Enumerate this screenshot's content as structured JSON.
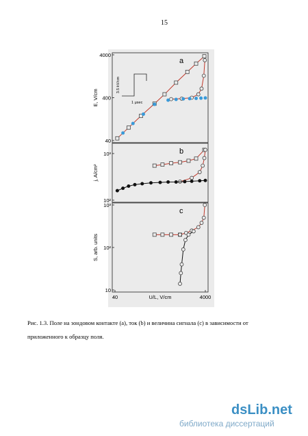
{
  "page_number": "15",
  "figure": {
    "chart_data": [
      {
        "type": "scatter",
        "panel": "a",
        "ylabel": "E, V/cm",
        "xlog": true,
        "ylog": true,
        "xlim": [
          40,
          4000
        ],
        "ylim": [
          40,
          4000
        ],
        "yticks": [
          40,
          400,
          4000
        ],
        "annotations": [
          "3.5 kV/cm",
          "1 μsec"
        ],
        "series": [
          {
            "color": "#c0392b",
            "marker": "square",
            "line": true,
            "x": [
              45,
              80,
              150,
              300,
              500,
              900,
              1600,
              2500,
              3800
            ],
            "values": [
              45,
              80,
              150,
              290,
              480,
              900,
              1600,
              2500,
              3700
            ]
          },
          {
            "color": "#c0392b",
            "marker": "circle",
            "line": true,
            "x": [
              700,
              1200,
              2000,
              2800,
              3300,
              3700,
              3900
            ],
            "values": [
              370,
              380,
              400,
              480,
              650,
              1300,
              3000
            ]
          },
          {
            "color": "#3a9ad9",
            "marker": "filled-circle",
            "line": false,
            "x": [
              60,
              100,
              170,
              300,
              600,
              900,
              1300,
              1800,
              2500,
              3200,
              4000
            ],
            "values": [
              60,
              100,
              165,
              280,
              350,
              365,
              375,
              380,
              385,
              390,
              395
            ]
          }
        ]
      },
      {
        "type": "scatter",
        "panel": "b",
        "ylabel": "j, A/cm²",
        "xlog": true,
        "ylog": true,
        "xlim": [
          40,
          4000
        ],
        "ylim": [
          100,
          1500
        ],
        "yticks": [
          {
            "value": 100,
            "label": "10²"
          },
          {
            "value": 1000,
            "label": "10³"
          }
        ],
        "series": [
          {
            "color": "#c0392b",
            "marker": "square",
            "line": true,
            "x": [
              300,
              450,
              700,
              1100,
              1700,
              2500,
              3800
            ],
            "values": [
              550,
              580,
              620,
              650,
              700,
              780,
              1200
            ]
          },
          {
            "color": "#c0392b",
            "marker": "circle",
            "line": true,
            "x": [
              1100,
              2000,
              3000,
              3500,
              3800,
              4000
            ],
            "values": [
              250,
              300,
              400,
              550,
              800,
              1200
            ]
          },
          {
            "color": "#111111",
            "marker": "filled-circle",
            "line": true,
            "x": [
              45,
              60,
              80,
              110,
              160,
              250,
              400,
              600,
              900,
              1400,
              2000,
              3000,
              4000
            ],
            "values": [
              160,
              180,
              200,
              215,
              225,
              235,
              240,
              245,
              245,
              250,
              255,
              260,
              265
            ]
          }
        ]
      },
      {
        "type": "scatter",
        "panel": "c",
        "ylabel": "S, arb. units",
        "xlabel": "U/L, V/cm",
        "xlog": true,
        "ylog": true,
        "xlim": [
          40,
          4000
        ],
        "ylim": [
          10,
          1000
        ],
        "xticks": [
          40,
          4000
        ],
        "yticks": [
          10,
          {
            "value": 100,
            "label": "10²"
          },
          {
            "value": 1000,
            "label": "10³"
          }
        ],
        "series": [
          {
            "color": "#c0392b",
            "marker": "square",
            "line": true,
            "x": [
              300,
              450,
              700,
              1100
            ],
            "values": [
              200,
              200,
              200,
              200
            ]
          },
          {
            "color": "#c0392b",
            "marker": "circle",
            "line": true,
            "x": [
              1100,
              1500,
              2000,
              2800,
              3300,
              3700,
              3900
            ],
            "values": [
              200,
              220,
              250,
              300,
              380,
              500,
              1000
            ]
          },
          {
            "color": "#111111",
            "marker": "circle",
            "line": true,
            "x": [
              1100,
              1150,
              1200,
              1300,
              1450,
              1700,
              2200
            ],
            "values": [
              14,
              25,
              40,
              90,
              150,
              200,
              240
            ]
          }
        ]
      }
    ]
  },
  "caption": [
    "Рис. 1.3. Поле на зондовом контакте (a), ток (b) и величина сигнала (c) в зависимости от",
    "приложенного к образцу поля."
  ],
  "watermark": {
    "logo": "dsLib.net",
    "tagline": "библиотека диссертаций"
  }
}
